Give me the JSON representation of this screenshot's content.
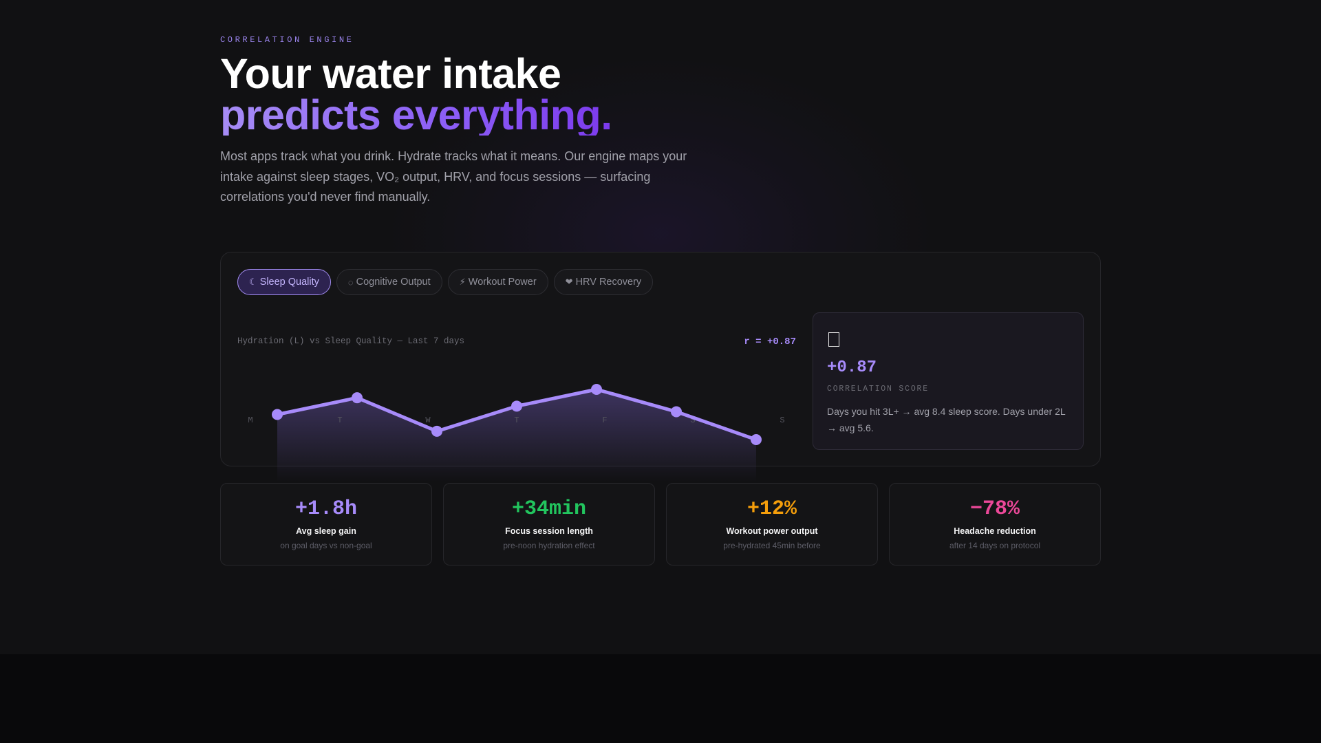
{
  "hero": {
    "eyebrow": "CORRELATION ENGINE",
    "headline_line1": "Your water intake",
    "headline_line2": "predicts everything.",
    "description": "Most apps track what you drink. Hydrate tracks what it means. Our engine maps your intake against sleep stages, VO₂ output, HRV, and focus sessions — surfacing correlations you'd never find manually."
  },
  "tabs": [
    {
      "label": "Sleep Quality",
      "icon": "moon-icon",
      "glyph": "☾",
      "active": true
    },
    {
      "label": "Cognitive Output",
      "icon": "brain-icon",
      "glyph": "◌",
      "active": false
    },
    {
      "label": "Workout Power",
      "icon": "lightning-icon",
      "glyph": "⚡",
      "active": false
    },
    {
      "label": "HRV Recovery",
      "icon": "heart-icon",
      "glyph": "❤",
      "active": false
    }
  ],
  "chart": {
    "caption": "Hydration (L) vs Sleep Quality — Last 7 days",
    "r_label": "r = +0.87"
  },
  "chart_data": {
    "type": "area",
    "categories": [
      "M",
      "T",
      "W",
      "T",
      "F",
      "S",
      "S"
    ],
    "values": [
      3.1,
      3.4,
      2.8,
      3.25,
      3.55,
      3.15,
      2.65
    ],
    "line_color": "#a78bfa",
    "grid": false,
    "legend": "none"
  },
  "score_card": {
    "icon": "moon-icon",
    "value": "+0.87",
    "label": "CORRELATION SCORE",
    "description": "Days you hit 3L+ → avg 8.4 sleep score. Days under 2L → avg 5.6."
  },
  "stats": [
    {
      "value": "+1.8h",
      "label": "Avg sleep gain",
      "sub": "on goal days vs non-goal",
      "color": "#a78bfa"
    },
    {
      "value": "+34min",
      "label": "Focus session length",
      "sub": "pre-noon hydration effect",
      "color": "#22c55e"
    },
    {
      "value": "+12%",
      "label": "Workout power output",
      "sub": "pre-hydrated 45min before",
      "color": "#f59e0b"
    },
    {
      "value": "−78%",
      "label": "Headache reduction",
      "sub": "after 14 days on protocol",
      "color": "#ec4899"
    }
  ]
}
